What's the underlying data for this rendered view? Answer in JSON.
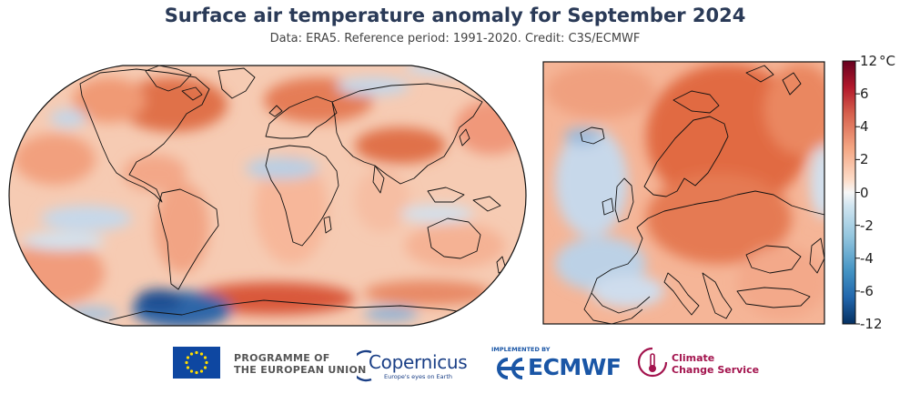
{
  "header": {
    "title": "Surface air temperature anomaly for September 2024",
    "subtitle": "Data: ERA5.  Reference period: 1991-2020.  Credit: C3S/ECMWF"
  },
  "colorbar": {
    "unit": "°C",
    "ticks": [
      {
        "label": "12",
        "value": 12
      },
      {
        "label": "6",
        "value": 6
      },
      {
        "label": "4",
        "value": 4
      },
      {
        "label": "2",
        "value": 2
      },
      {
        "label": "0",
        "value": 0
      },
      {
        "label": "-2",
        "value": -2
      },
      {
        "label": "-4",
        "value": -4
      },
      {
        "label": "-6",
        "value": -6
      },
      {
        "label": "-12",
        "value": -12
      }
    ],
    "colors": [
      "#67001f",
      "#b2182b",
      "#d6604d",
      "#f4a582",
      "#fddbc7",
      "#f7f7f7",
      "#d1e5f0",
      "#92c5de",
      "#4393c3",
      "#2166ac",
      "#053061"
    ]
  },
  "maps": {
    "global": {
      "name": "global-map"
    },
    "europe": {
      "name": "europe-map"
    }
  },
  "footer": {
    "eu_line1": "PROGRAMME OF",
    "eu_line2": "THE EUROPEAN UNION",
    "copernicus_word": "Copernicus",
    "copernicus_tag": "Europe's eyes on Earth",
    "ecmwf_implemented": "IMPLEMENTED BY",
    "ecmwf_word": "ECMWF",
    "c3s_line1": "Climate",
    "c3s_line2": "Change Service"
  },
  "palette": {
    "warm_strong": "#d2542b",
    "warm": "#ef8d62",
    "warm_light": "#f9c6ab",
    "neutral": "#f4ede9",
    "cool_light": "#c9daea",
    "cool": "#6a9ac8",
    "cool_strong": "#1f4e92"
  }
}
